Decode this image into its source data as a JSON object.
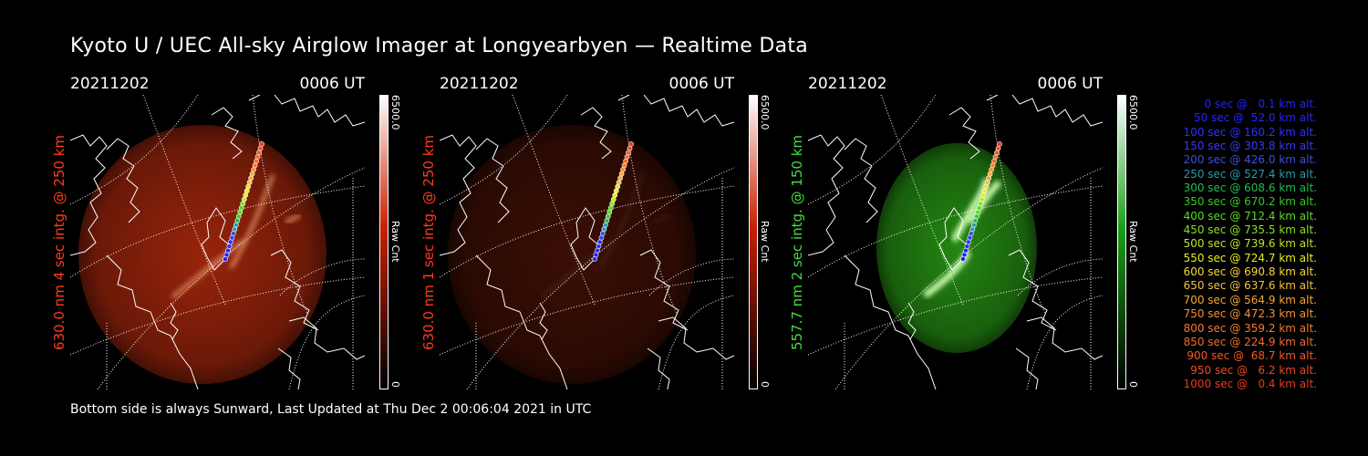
{
  "header": {
    "title": "Kyoto U / UEC All-sky Airglow Imager at Longyearbyen — Realtime Data"
  },
  "footer": {
    "text": "Bottom side is always Sunward, Last Updated at Thu Dec  2 00:06:04 2021 in UTC"
  },
  "colors": {
    "red": "#ff3b1e",
    "green": "#44dd44",
    "white": "#ffffff"
  },
  "chart_data": [
    {
      "type": "heatmap",
      "date": "20211202",
      "time": "0006 UT",
      "ylabel": "630.0 nm 4 sec intg. @ 250 km",
      "ylabel_color": "#ff3b1e",
      "colorbar": {
        "max_label": "6500.0",
        "name": "Raw Cnt",
        "min_label": "0",
        "color_top": "#ffffff",
        "color_mid": "#c82000",
        "color_bottom": "#000000"
      },
      "emission": "red",
      "brightness": 0.9
    },
    {
      "type": "heatmap",
      "date": "20211202",
      "time": "0006 UT",
      "ylabel": "630.0 nm 1 sec intg. @ 250 km",
      "ylabel_color": "#ff3b1e",
      "colorbar": {
        "max_label": "6500.0",
        "name": "Raw Cnt",
        "min_label": "0",
        "color_top": "#ffffff",
        "color_mid": "#c82000",
        "color_bottom": "#000000"
      },
      "emission": "red",
      "brightness": 0.35
    },
    {
      "type": "heatmap",
      "date": "20211202",
      "time": "0006 UT",
      "ylabel": "557.7 nm 2 sec intg. @ 150 km",
      "ylabel_color": "#44dd44",
      "colorbar": {
        "max_label": "6500.0",
        "name": "Raw Cnt",
        "min_label": "0",
        "color_top": "#ffffff",
        "color_mid": "#1aa01a",
        "color_bottom": "#000000"
      },
      "emission": "green",
      "brightness": 0.9
    }
  ],
  "trajectory_legend": [
    {
      "sec": 0,
      "alt_km": 0.1,
      "text": "0 sec @   0.1 km alt.",
      "color": "#2222ff"
    },
    {
      "sec": 50,
      "alt_km": 52.0,
      "text": "50 sec @  52.0 km alt.",
      "color": "#2626ff"
    },
    {
      "sec": 100,
      "alt_km": 160.2,
      "text": "100 sec @ 160.2 km alt.",
      "color": "#3030ff"
    },
    {
      "sec": 150,
      "alt_km": 303.8,
      "text": "150 sec @ 303.8 km alt.",
      "color": "#3a3aee"
    },
    {
      "sec": 200,
      "alt_km": 426.0,
      "text": "200 sec @ 426.0 km alt.",
      "color": "#3f4fdd"
    },
    {
      "sec": 250,
      "alt_km": 527.4,
      "text": "250 sec @ 527.4 km alt.",
      "color": "#2a9aaa"
    },
    {
      "sec": 300,
      "alt_km": 608.6,
      "text": "300 sec @ 608.6 km alt.",
      "color": "#22bb55"
    },
    {
      "sec": 350,
      "alt_km": 670.2,
      "text": "350 sec @ 670.2 km alt.",
      "color": "#33cc22"
    },
    {
      "sec": 400,
      "alt_km": 712.4,
      "text": "400 sec @ 712.4 km alt.",
      "color": "#55dd22"
    },
    {
      "sec": 450,
      "alt_km": 735.5,
      "text": "450 sec @ 735.5 km alt.",
      "color": "#88e022"
    },
    {
      "sec": 500,
      "alt_km": 739.6,
      "text": "500 sec @ 739.6 km alt.",
      "color": "#bbe822"
    },
    {
      "sec": 550,
      "alt_km": 724.7,
      "text": "550 sec @ 724.7 km alt.",
      "color": "#e6ee22"
    },
    {
      "sec": 600,
      "alt_km": 690.8,
      "text": "600 sec @ 690.8 km alt.",
      "color": "#f4d83a"
    },
    {
      "sec": 650,
      "alt_km": 637.6,
      "text": "650 sec @ 637.6 km alt.",
      "color": "#f4c040"
    },
    {
      "sec": 700,
      "alt_km": 564.9,
      "text": "700 sec @ 564.9 km alt.",
      "color": "#f4a838"
    },
    {
      "sec": 750,
      "alt_km": 472.3,
      "text": "750 sec @ 472.3 km alt.",
      "color": "#f49032"
    },
    {
      "sec": 800,
      "alt_km": 359.2,
      "text": "800 sec @ 359.2 km alt.",
      "color": "#f47a2e"
    },
    {
      "sec": 850,
      "alt_km": 224.9,
      "text": "850 sec @ 224.9 km alt.",
      "color": "#f46a2a"
    },
    {
      "sec": 900,
      "alt_km": 68.7,
      "text": "900 sec @  68.7 km alt.",
      "color": "#f05a26"
    },
    {
      "sec": 950,
      "alt_km": 6.2,
      "text": "950 sec @   6.2 km alt.",
      "color": "#ec4a22"
    },
    {
      "sec": 1000,
      "alt_km": 0.4,
      "text": "1000 sec @   0.4 km alt.",
      "color": "#e83a1e"
    }
  ]
}
